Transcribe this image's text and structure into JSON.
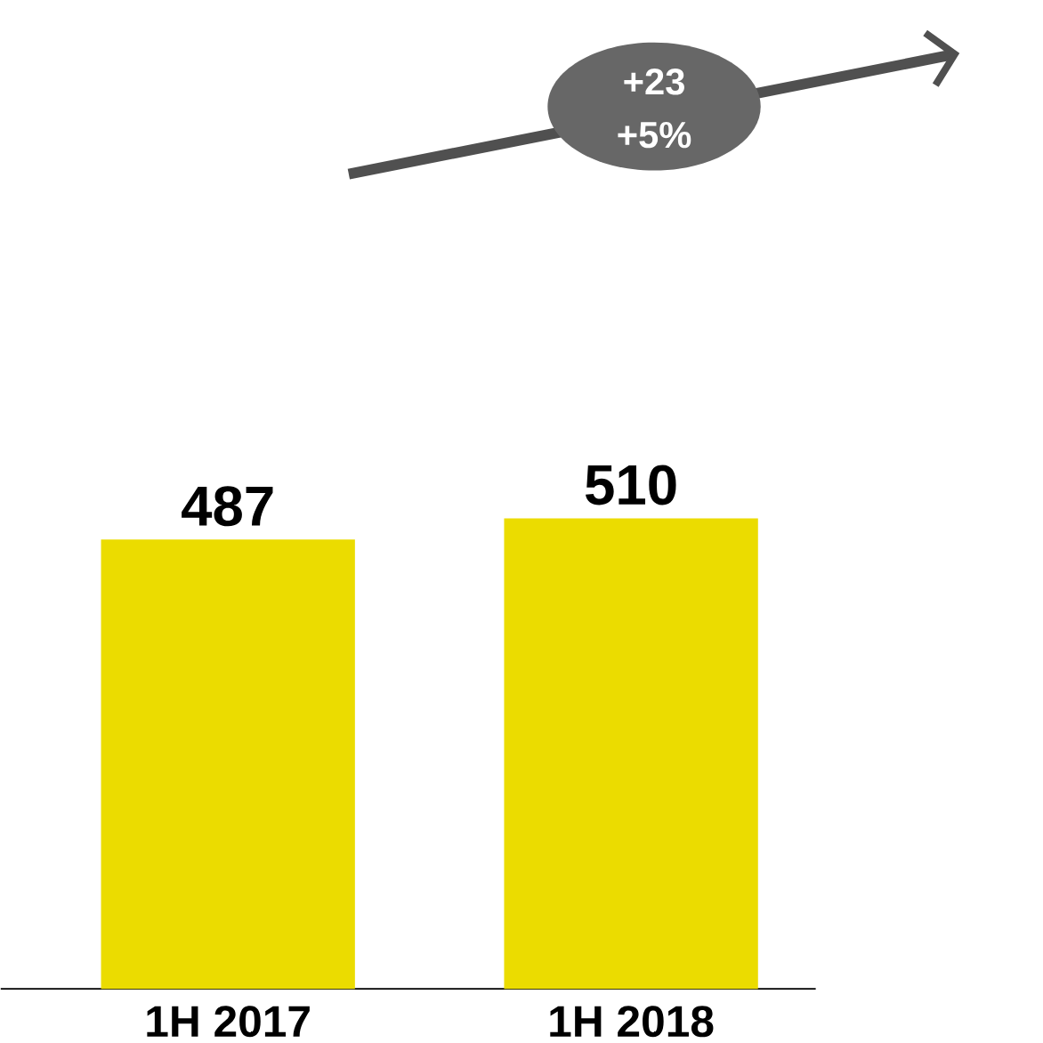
{
  "chart_data": {
    "type": "bar",
    "categories": [
      "1H 2017",
      "1H 2018"
    ],
    "values": [
      487,
      510
    ],
    "color": "#ebdc00",
    "data_labels": true,
    "annotations": [
      "+23",
      "+5%"
    ]
  }
}
